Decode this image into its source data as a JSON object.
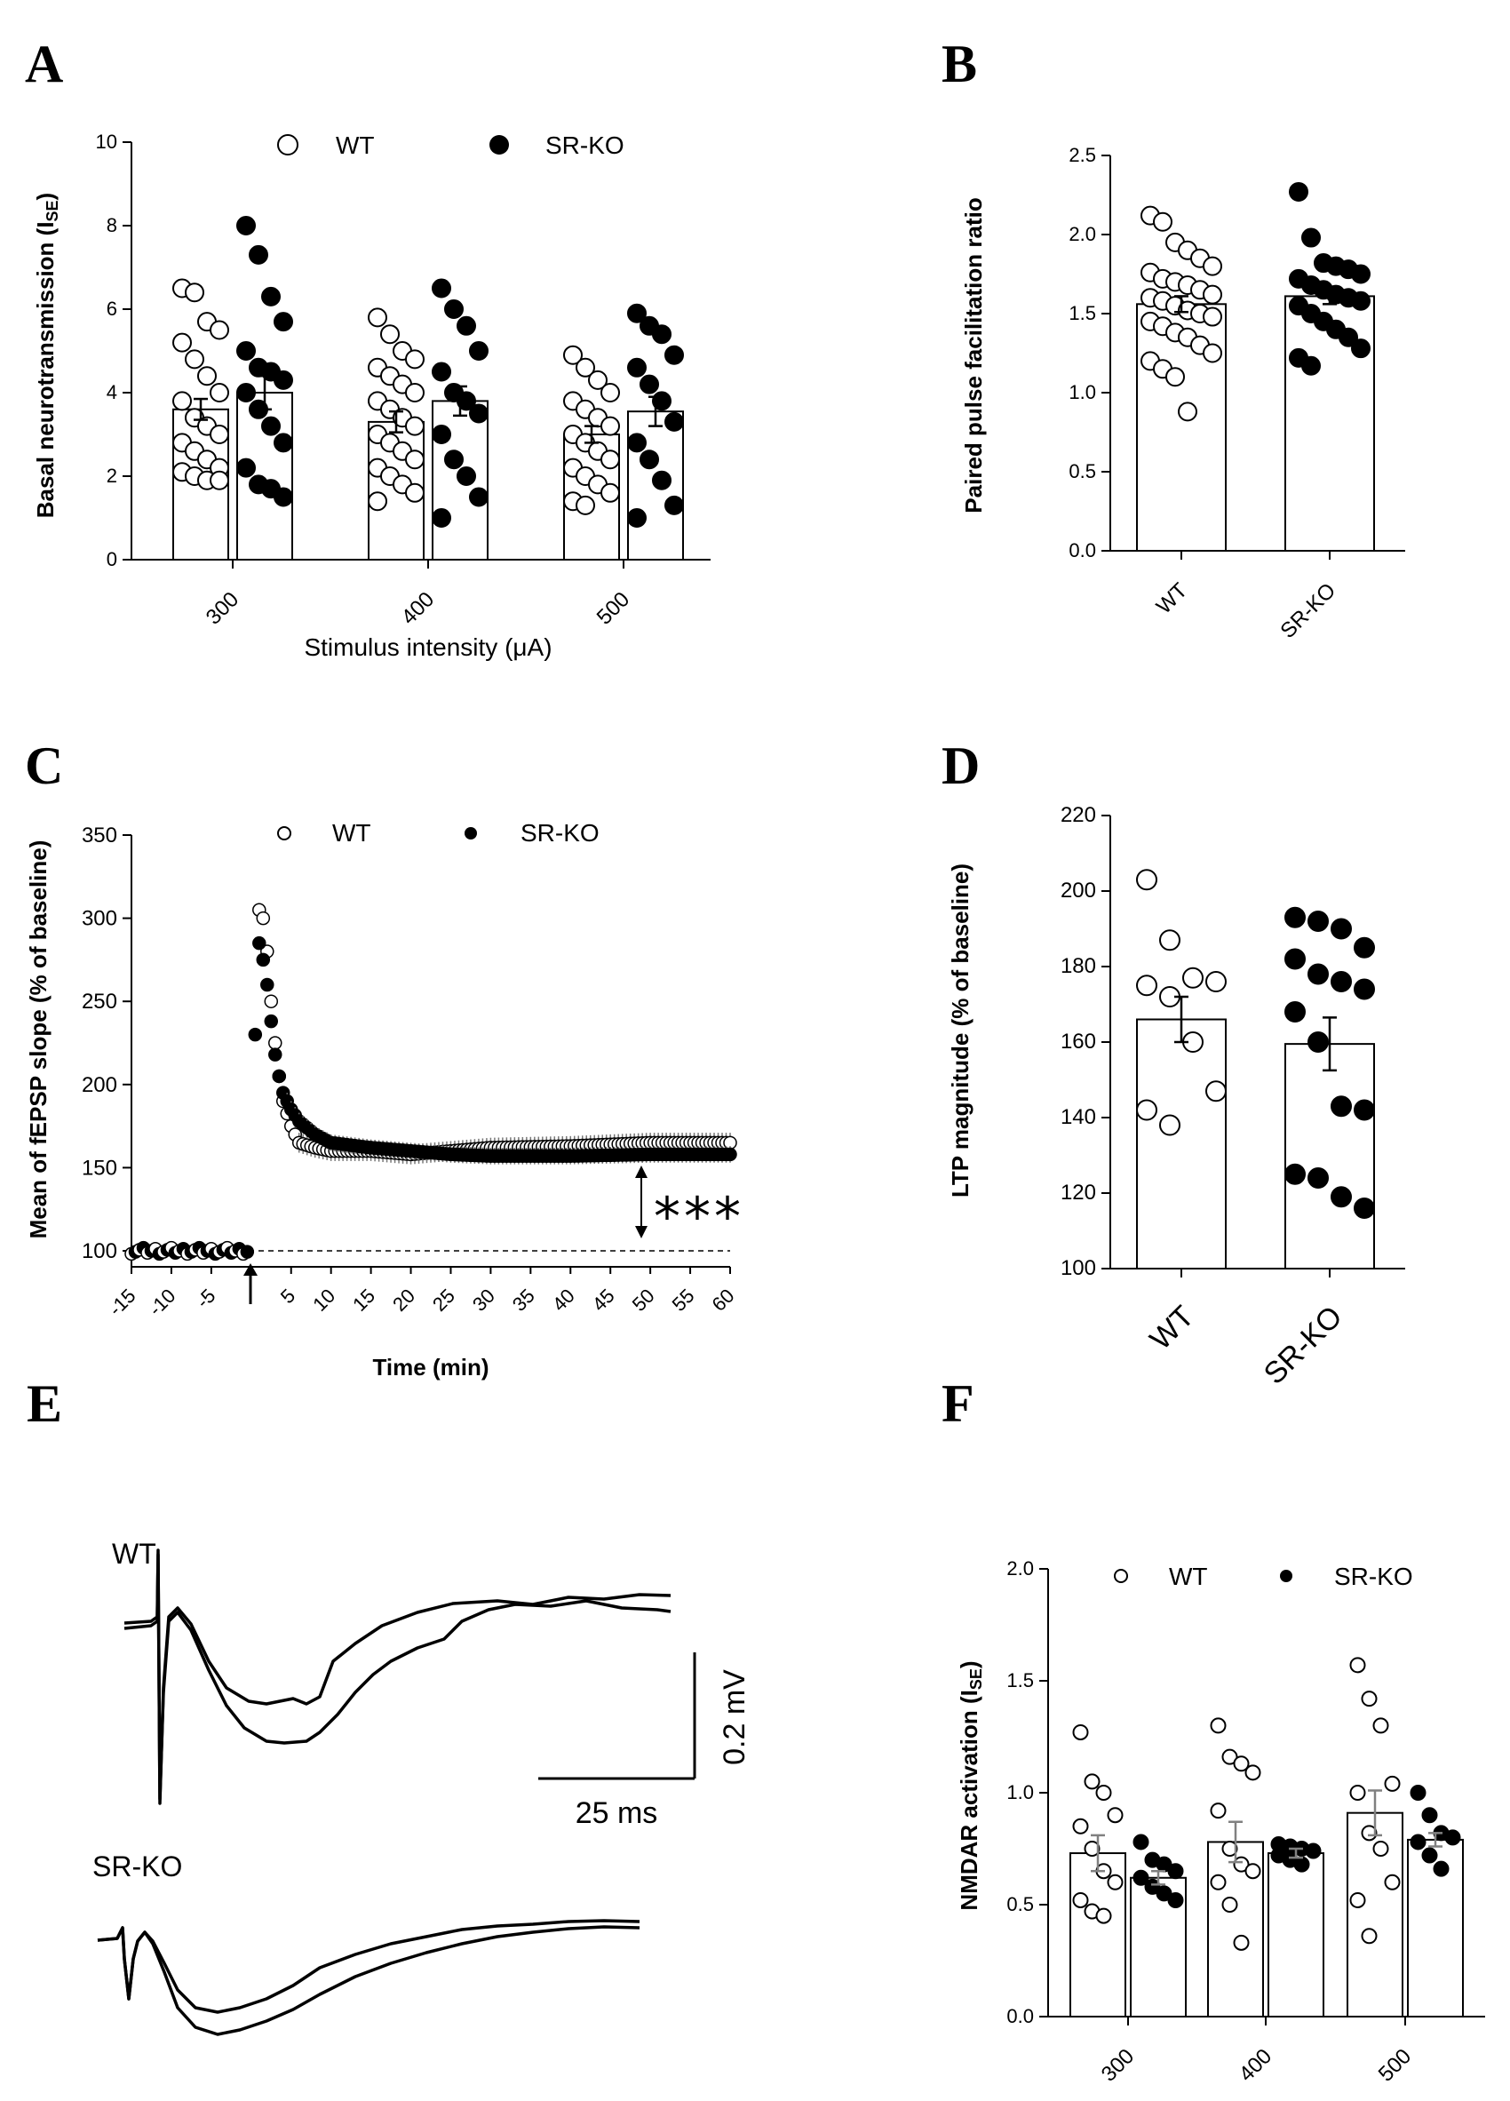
{
  "panels": {
    "a": {
      "letter": "A",
      "ylabel_main": "Basal neurotransmission (I",
      "ylabel_sub": "SE",
      "ylabel_close": ")",
      "xlabel": "Stimulus intensity (μA)",
      "legend": {
        "wt": "WT",
        "ko": "SR-KO"
      }
    },
    "b": {
      "letter": "B",
      "ylabel": "Paired pulse facilitation ratio"
    },
    "c": {
      "letter": "C",
      "ylabel": "Mean of fEPSP slope (% of baseline)",
      "xlabel": "Time (min)",
      "legend": {
        "wt": "WT",
        "ko": "SR-KO"
      },
      "significance": "***"
    },
    "d": {
      "letter": "D",
      "ylabel": "LTP magnitude (% of baseline)"
    },
    "e": {
      "letter": "E",
      "trace_wt_label": "WT",
      "trace_ko_label": "SR-KO",
      "scale_v": "0.2 mV",
      "scale_t": "25 ms"
    },
    "f": {
      "letter": "F",
      "ylabel_main": "NMDAR activation (I",
      "ylabel_sub": "SE",
      "ylabel_close": ")",
      "legend": {
        "wt": "WT",
        "ko": "SR-KO"
      }
    }
  },
  "chart_data": [
    {
      "id": "A",
      "type": "bar",
      "categories": [
        "300",
        "400",
        "500"
      ],
      "ylim": [
        0,
        10
      ],
      "yticks": [
        0,
        2,
        4,
        6,
        8,
        10
      ],
      "series": [
        {
          "name": "WT",
          "means": [
            3.6,
            3.3,
            3.0
          ],
          "sem": [
            0.25,
            0.25,
            0.2
          ],
          "points": [
            [
              6.5,
              6.4,
              5.7,
              5.5,
              5.2,
              4.8,
              4.4,
              4.0,
              3.8,
              3.4,
              3.2,
              3.0,
              2.8,
              2.6,
              2.4,
              2.2,
              2.1,
              2.0,
              1.9,
              1.9
            ],
            [
              5.8,
              5.4,
              5.0,
              4.8,
              4.6,
              4.4,
              4.2,
              4.0,
              3.8,
              3.6,
              3.4,
              3.2,
              3.0,
              2.8,
              2.6,
              2.4,
              2.2,
              2.0,
              1.8,
              1.6,
              1.4
            ],
            [
              4.9,
              4.6,
              4.3,
              4.0,
              3.8,
              3.6,
              3.4,
              3.2,
              3.0,
              2.8,
              2.6,
              2.4,
              2.2,
              2.0,
              1.8,
              1.6,
              1.4,
              1.3
            ]
          ]
        },
        {
          "name": "SR-KO",
          "means": [
            4.0,
            3.8,
            3.55
          ],
          "sem": [
            0.4,
            0.35,
            0.35
          ],
          "points": [
            [
              8.0,
              7.3,
              6.3,
              5.7,
              5.0,
              4.6,
              4.5,
              4.3,
              4.0,
              3.6,
              3.2,
              2.8,
              2.2,
              1.8,
              1.7,
              1.5
            ],
            [
              6.5,
              6.0,
              5.6,
              5.0,
              4.5,
              4.0,
              3.8,
              3.5,
              3.0,
              2.4,
              2.0,
              1.5,
              1.0
            ],
            [
              5.9,
              5.6,
              5.4,
              4.9,
              4.6,
              4.2,
              3.8,
              3.3,
              2.8,
              2.4,
              1.9,
              1.3,
              1.0
            ]
          ]
        }
      ]
    },
    {
      "id": "B",
      "type": "bar",
      "categories": [
        "WT",
        "SR-KO"
      ],
      "ylim": [
        0,
        2.5
      ],
      "yticks": [
        0.0,
        0.5,
        1.0,
        1.5,
        2.0,
        2.5
      ],
      "series": [
        {
          "name": "WT",
          "mean": 1.56,
          "sem": 0.05,
          "points": [
            2.12,
            2.08,
            1.95,
            1.9,
            1.85,
            1.8,
            1.76,
            1.72,
            1.7,
            1.68,
            1.65,
            1.62,
            1.6,
            1.58,
            1.55,
            1.52,
            1.5,
            1.48,
            1.45,
            1.42,
            1.38,
            1.35,
            1.3,
            1.25,
            1.2,
            1.15,
            1.1,
            0.88
          ]
        },
        {
          "name": "SR-KO",
          "mean": 1.61,
          "sem": 0.05,
          "points": [
            2.27,
            1.98,
            1.82,
            1.8,
            1.78,
            1.75,
            1.72,
            1.68,
            1.65,
            1.62,
            1.6,
            1.58,
            1.55,
            1.5,
            1.45,
            1.4,
            1.35,
            1.28,
            1.22,
            1.17
          ]
        }
      ]
    },
    {
      "id": "C",
      "type": "scatter",
      "xlim": [
        -15,
        60
      ],
      "ylim": [
        100,
        350
      ],
      "xticks": [
        -15,
        -10,
        -5,
        5,
        10,
        15,
        20,
        25,
        30,
        35,
        40,
        45,
        50,
        55,
        60
      ],
      "yticks": [
        100,
        150,
        200,
        250,
        300,
        350
      ],
      "baseline": 100,
      "series": [
        {
          "name": "WT",
          "x": [
            1,
            1.5,
            2,
            2.5,
            3,
            3.5,
            4,
            5,
            6,
            8,
            10,
            15,
            20,
            25,
            30,
            40,
            50,
            60
          ],
          "y": [
            305,
            300,
            280,
            250,
            225,
            205,
            190,
            175,
            165,
            162,
            160,
            160,
            158,
            160,
            162,
            163,
            165,
            165
          ]
        },
        {
          "name": "SR-KO",
          "x": [
            0.5,
            1,
            1.5,
            2,
            2.5,
            3,
            3.5,
            4,
            5,
            6,
            8,
            10,
            15,
            20,
            25,
            30,
            40,
            50,
            60
          ],
          "y": [
            230,
            285,
            275,
            260,
            238,
            218,
            205,
            195,
            185,
            178,
            170,
            165,
            162,
            160,
            158,
            157,
            157,
            158,
            158
          ]
        }
      ]
    },
    {
      "id": "D",
      "type": "bar",
      "categories": [
        "WT",
        "SR-KO"
      ],
      "ylim": [
        100,
        220
      ],
      "yticks": [
        100,
        120,
        140,
        160,
        180,
        200,
        220
      ],
      "series": [
        {
          "name": "WT",
          "mean": 166,
          "sem": 6,
          "points": [
            203,
            187,
            177,
            176,
            175,
            172,
            160,
            147,
            142,
            138
          ]
        },
        {
          "name": "SR-KO",
          "mean": 159.5,
          "sem": 7,
          "points": [
            193,
            192,
            190,
            185,
            182,
            178,
            176,
            174,
            168,
            160,
            143,
            142,
            125,
            124,
            119,
            116
          ]
        }
      ]
    },
    {
      "id": "F",
      "type": "bar",
      "categories": [
        "300",
        "400",
        "500"
      ],
      "ylim": [
        0,
        2.0
      ],
      "yticks": [
        0.0,
        0.5,
        1.0,
        1.5,
        2.0
      ],
      "series": [
        {
          "name": "WT",
          "means": [
            0.73,
            0.78,
            0.91
          ],
          "sem": [
            0.08,
            0.09,
            0.1
          ],
          "points": [
            [
              1.27,
              1.05,
              1.0,
              0.9,
              0.85,
              0.75,
              0.65,
              0.6,
              0.52,
              0.47,
              0.45
            ],
            [
              1.3,
              1.16,
              1.13,
              1.09,
              0.92,
              0.75,
              0.68,
              0.65,
              0.6,
              0.5,
              0.33
            ],
            [
              1.57,
              1.42,
              1.3,
              1.04,
              1.0,
              0.82,
              0.75,
              0.6,
              0.52,
              0.36
            ]
          ]
        },
        {
          "name": "SR-KO",
          "means": [
            0.62,
            0.73,
            0.79
          ],
          "sem": [
            0.03,
            0.02,
            0.03
          ],
          "points": [
            [
              0.78,
              0.7,
              0.68,
              0.65,
              0.62,
              0.58,
              0.55,
              0.52
            ],
            [
              0.77,
              0.76,
              0.75,
              0.74,
              0.72,
              0.7,
              0.68
            ],
            [
              1.0,
              0.9,
              0.82,
              0.8,
              0.78,
              0.72,
              0.66
            ]
          ]
        }
      ]
    }
  ]
}
